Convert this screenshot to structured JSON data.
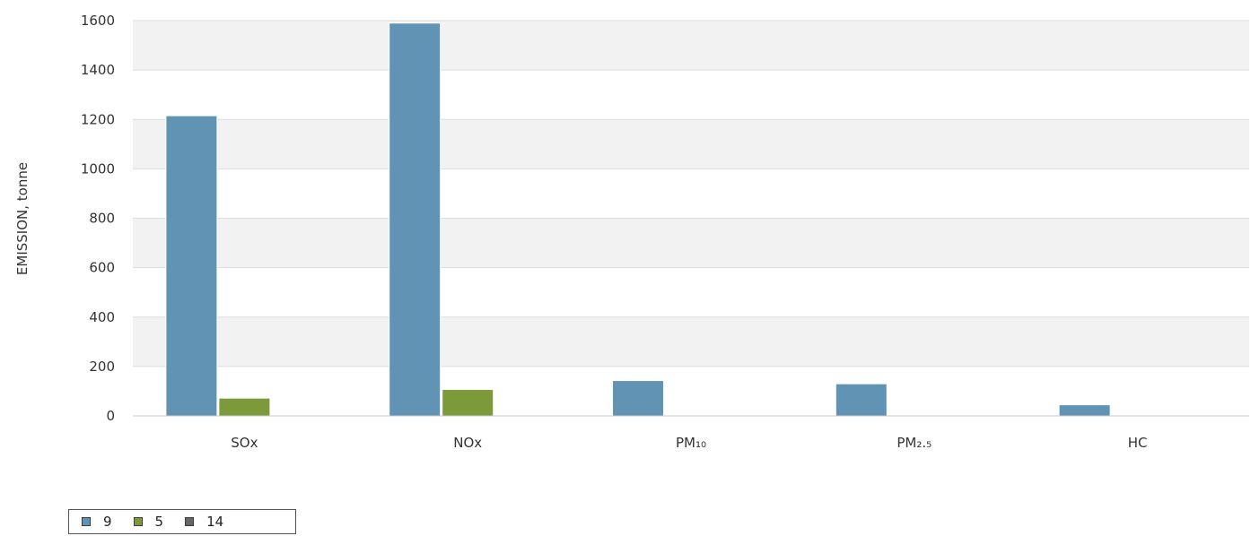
{
  "chart_data": {
    "type": "bar",
    "ylabel": "EMISSION, tonne",
    "ylim": [
      0,
      1600
    ],
    "yticks": [
      "0",
      "200",
      "400",
      "600",
      "800",
      "1000",
      "1200",
      "1400",
      "1600"
    ],
    "categories": [
      "SOx",
      "NOx",
      "PM₁₀",
      "PM₂.₅",
      "HC"
    ],
    "series": [
      {
        "name": "9",
        "color": "#6193b5",
        "values": [
          1215,
          1590,
          143,
          130,
          45
        ]
      },
      {
        "name": "5",
        "color": "#7d9a3a",
        "values": [
          72,
          107,
          0,
          0,
          0
        ]
      },
      {
        "name": "14",
        "color": "#666666",
        "values": [
          0,
          0,
          0,
          0,
          0
        ]
      }
    ],
    "grid": true,
    "band_color": "#f2f2f2",
    "legend_position": "bottom-left"
  }
}
